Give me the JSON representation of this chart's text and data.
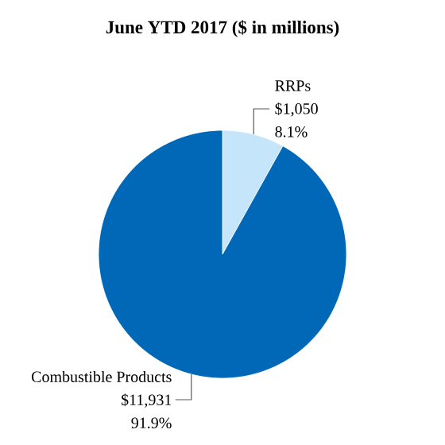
{
  "chart_data": {
    "type": "pie",
    "title": "June YTD 2017 ($ in millions)",
    "categories": [
      "RRPs",
      "Combustible Products"
    ],
    "values": [
      1050,
      11931
    ],
    "colors": [
      "#c5e6fa",
      "#0068b7"
    ],
    "value_labels": [
      "$1,050",
      "$11,931"
    ],
    "annotations": [
      "8.1%",
      "91.9%"
    ]
  }
}
